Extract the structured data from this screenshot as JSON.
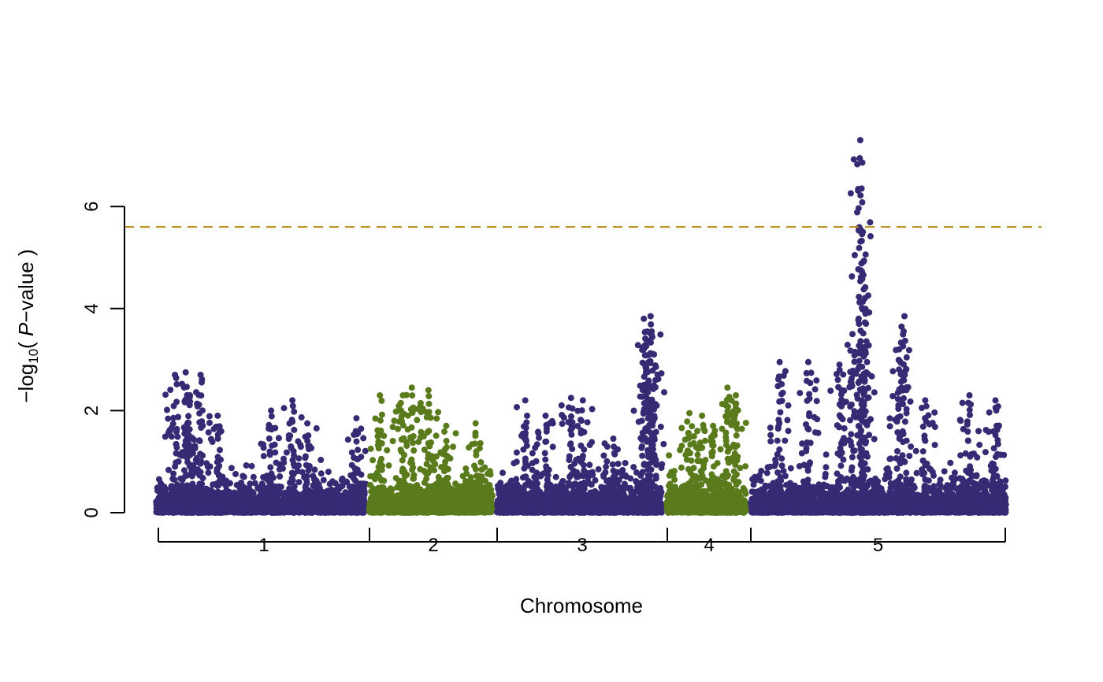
{
  "chart_data": {
    "type": "scatter",
    "title": "",
    "xlabel": "Chromosome",
    "ylabel": {
      "prefix": "−log",
      "subscript": "10",
      "open": "( ",
      "italic": "P",
      "rest": "−value )"
    },
    "ylim": [
      0,
      7.4
    ],
    "yticks": [
      0,
      2,
      4,
      6
    ],
    "threshold": 5.6,
    "colors": {
      "odd": "#372a74",
      "even": "#5a7b1c",
      "threshold_line": "#b8860b"
    },
    "chromosomes": [
      {
        "label": "1",
        "color": "odd",
        "peaks": [
          [
            0.1,
            2.7
          ],
          [
            0.15,
            2.75
          ],
          [
            0.17,
            2.3
          ],
          [
            0.22,
            2.7
          ],
          [
            0.3,
            1.9
          ],
          [
            0.55,
            2.0
          ],
          [
            0.65,
            2.2
          ],
          [
            0.72,
            1.75
          ],
          [
            0.95,
            1.85
          ]
        ]
      },
      {
        "label": "2",
        "color": "even",
        "peaks": [
          [
            0.1,
            2.3
          ],
          [
            0.28,
            2.3
          ],
          [
            0.35,
            2.45
          ],
          [
            0.48,
            2.4
          ],
          [
            0.62,
            1.7
          ],
          [
            0.85,
            1.75
          ]
        ]
      },
      {
        "label": "3",
        "color": "odd",
        "peaks": [
          [
            0.18,
            2.2
          ],
          [
            0.3,
            1.9
          ],
          [
            0.45,
            2.25
          ],
          [
            0.52,
            2.2
          ],
          [
            0.7,
            1.45
          ],
          [
            0.88,
            3.8
          ],
          [
            0.9,
            3.55
          ],
          [
            0.92,
            3.85
          ],
          [
            0.94,
            3.1
          ]
        ]
      },
      {
        "label": "4",
        "color": "even",
        "peaks": [
          [
            0.3,
            1.95
          ],
          [
            0.45,
            1.9
          ],
          [
            0.58,
            1.7
          ],
          [
            0.75,
            2.45
          ],
          [
            0.85,
            2.3
          ]
        ]
      },
      {
        "label": "5",
        "color": "odd",
        "peaks": [
          [
            0.12,
            2.95
          ],
          [
            0.23,
            2.95
          ],
          [
            0.35,
            2.9
          ],
          [
            0.4,
            3.5
          ],
          [
            0.43,
            7.3
          ],
          [
            0.44,
            5.5
          ],
          [
            0.45,
            3.9
          ],
          [
            0.58,
            3.2
          ],
          [
            0.6,
            3.85
          ],
          [
            0.68,
            2.2
          ],
          [
            0.85,
            2.3
          ],
          [
            0.95,
            2.2
          ]
        ]
      }
    ]
  }
}
